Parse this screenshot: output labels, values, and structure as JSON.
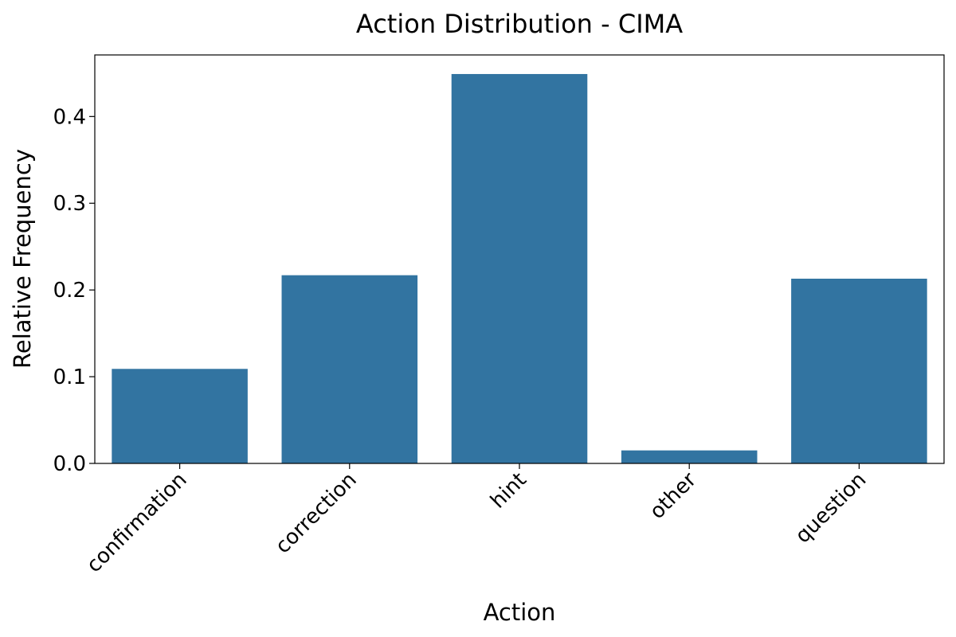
{
  "chart_data": {
    "type": "bar",
    "title": "Action Distribution - CIMA",
    "xlabel": "Action",
    "ylabel": "Relative Frequency",
    "categories": [
      "confirmation",
      "correction",
      "hint",
      "other",
      "question"
    ],
    "values": [
      0.109,
      0.217,
      0.449,
      0.015,
      0.213
    ],
    "ylim": [
      0,
      0.471
    ],
    "yticks": [
      0.0,
      0.1,
      0.2,
      0.3,
      0.4
    ],
    "ytick_labels": [
      "0.0",
      "0.1",
      "0.2",
      "0.3",
      "0.4"
    ],
    "bar_color": "#3274a1",
    "grid": false,
    "legend": "none"
  }
}
